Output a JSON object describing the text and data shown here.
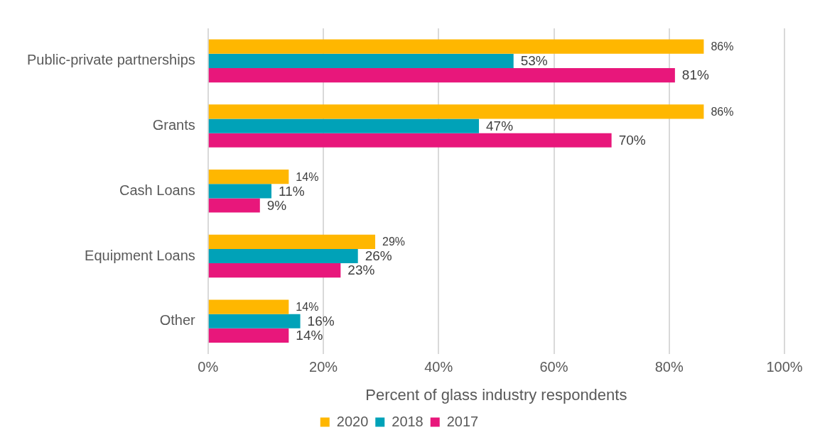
{
  "chart_data": {
    "type": "bar",
    "orientation": "horizontal",
    "xlabel": "Percent of glass industry respondents",
    "categories": [
      "Public-private partnerships",
      "Grants",
      "Cash Loans",
      "Equipment Loans",
      "Other"
    ],
    "series": [
      {
        "name": "2020",
        "color": "#ffb700",
        "values": [
          86,
          86,
          14,
          29,
          14
        ],
        "value_labels": [
          "86%",
          "86%",
          "14%",
          "29%",
          "14%"
        ]
      },
      {
        "name": "2018",
        "color": "#00a2b8",
        "values": [
          53,
          47,
          11,
          26,
          16
        ],
        "value_labels": [
          "53%",
          "47%",
          "11%",
          "26%",
          "16%"
        ]
      },
      {
        "name": "2017",
        "color": "#e8177b",
        "values": [
          81,
          70,
          9,
          23,
          14
        ],
        "value_labels": [
          "81%",
          "70%",
          "9%",
          "23%",
          "14%"
        ]
      }
    ],
    "xlim": [
      0,
      100
    ],
    "xticks": [
      {
        "value": 0,
        "label": "0%"
      },
      {
        "value": 20,
        "label": "20%"
      },
      {
        "value": 40,
        "label": "40%"
      },
      {
        "value": 60,
        "label": "60%"
      },
      {
        "value": 80,
        "label": "80%"
      },
      {
        "value": 100,
        "label": "100%"
      }
    ],
    "grid": "x",
    "legend": "bottom"
  }
}
